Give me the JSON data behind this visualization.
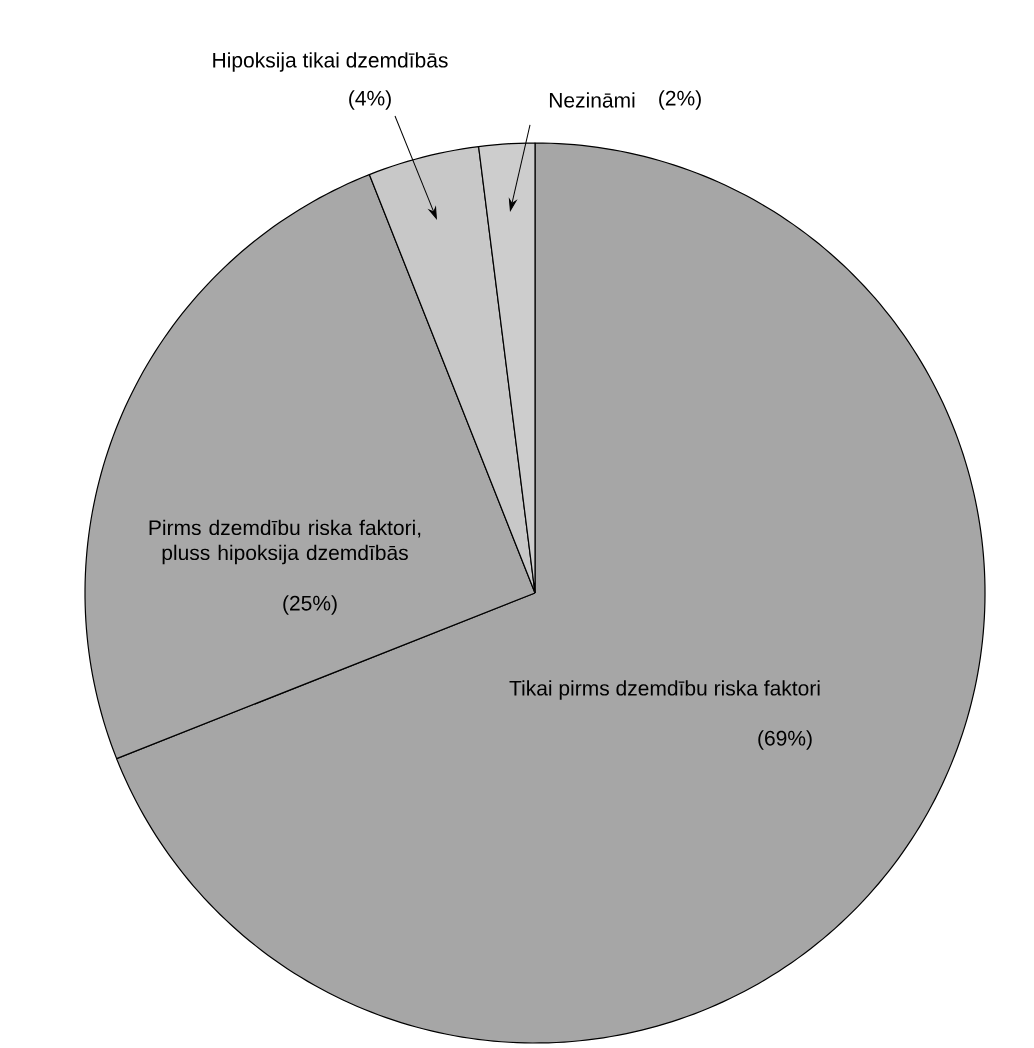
{
  "chart_data": {
    "type": "pie",
    "categories": [
      "Tikai pirms dzemdību riska faktori",
      "Pirms dzemdību riska faktori, pluss hipoksija dzemdībās",
      "Hipoksija tikai dzemdībās",
      "Nezināmi"
    ],
    "values": [
      69,
      25,
      4,
      2
    ],
    "value_labels": [
      "(69%)",
      "(25%)",
      "(4%)",
      "(2%)"
    ],
    "colors": [
      "#a6a6a6",
      "#a8a8a8",
      "#c8c8c8",
      "#cdcdcd"
    ]
  }
}
